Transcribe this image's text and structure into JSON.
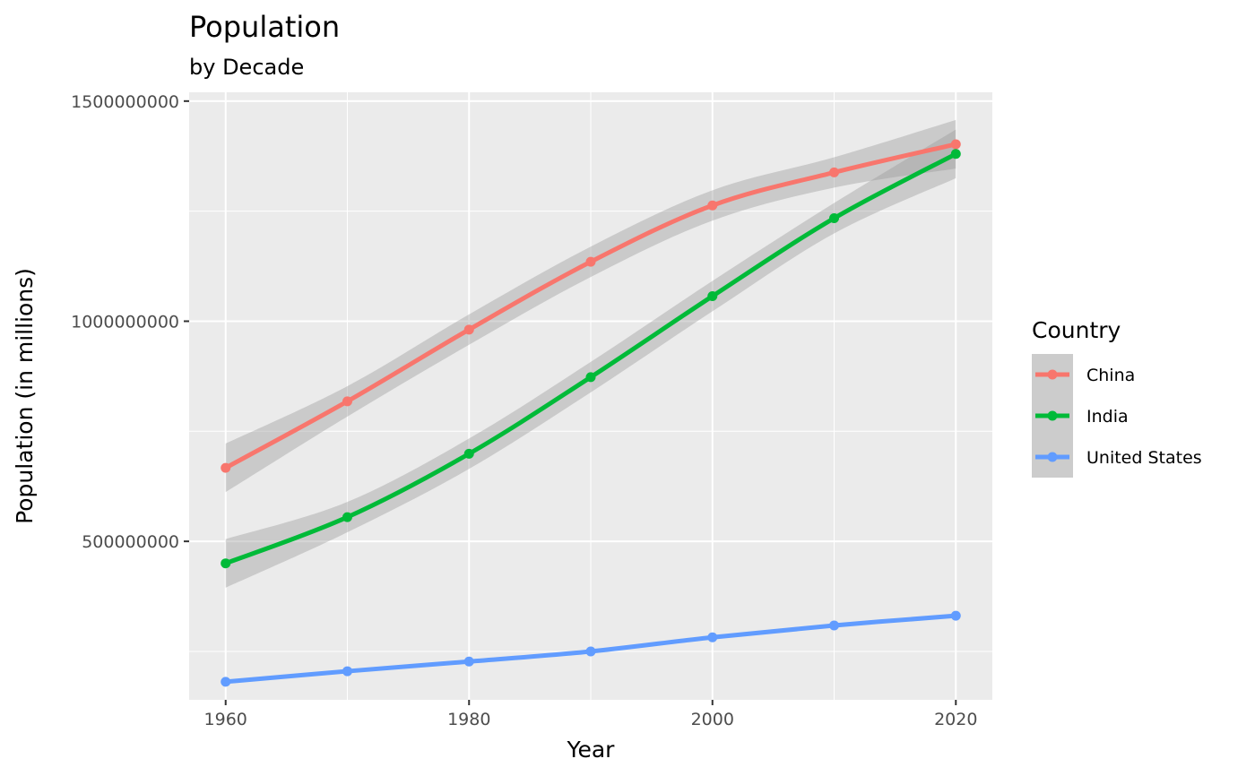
{
  "chart_data": {
    "type": "line",
    "title": "Population",
    "subtitle": "by Decade",
    "xlabel": "Year",
    "ylabel": "Population (in millions)",
    "x": [
      1960,
      1970,
      1980,
      1990,
      2000,
      2010,
      2020
    ],
    "xlim": [
      1957,
      2023
    ],
    "ylim": [
      140000000,
      1520000000
    ],
    "x_ticks": [
      1960,
      1980,
      2000,
      2020
    ],
    "x_tick_labels": [
      "1960",
      "1980",
      "2000",
      "2020"
    ],
    "y_ticks": [
      500000000,
      1000000000,
      1500000000
    ],
    "y_tick_labels": [
      "500000000",
      "1000000000",
      "1500000000"
    ],
    "grid": true,
    "legend": {
      "title": "Country",
      "position": "right"
    },
    "series": [
      {
        "name": "China",
        "color": "#F8766D",
        "ribbon": true,
        "values": [
          667000000,
          818000000,
          981000000,
          1135000000,
          1263000000,
          1338000000,
          1402000000
        ]
      },
      {
        "name": "India",
        "color": "#00BA38",
        "ribbon": true,
        "values": [
          450000000,
          555000000,
          699000000,
          873000000,
          1057000000,
          1234000000,
          1380000000
        ]
      },
      {
        "name": "United States",
        "color": "#619CFF",
        "ribbon": false,
        "values": [
          181000000,
          205000000,
          227000000,
          250000000,
          282000000,
          309000000,
          331000000
        ]
      }
    ]
  }
}
